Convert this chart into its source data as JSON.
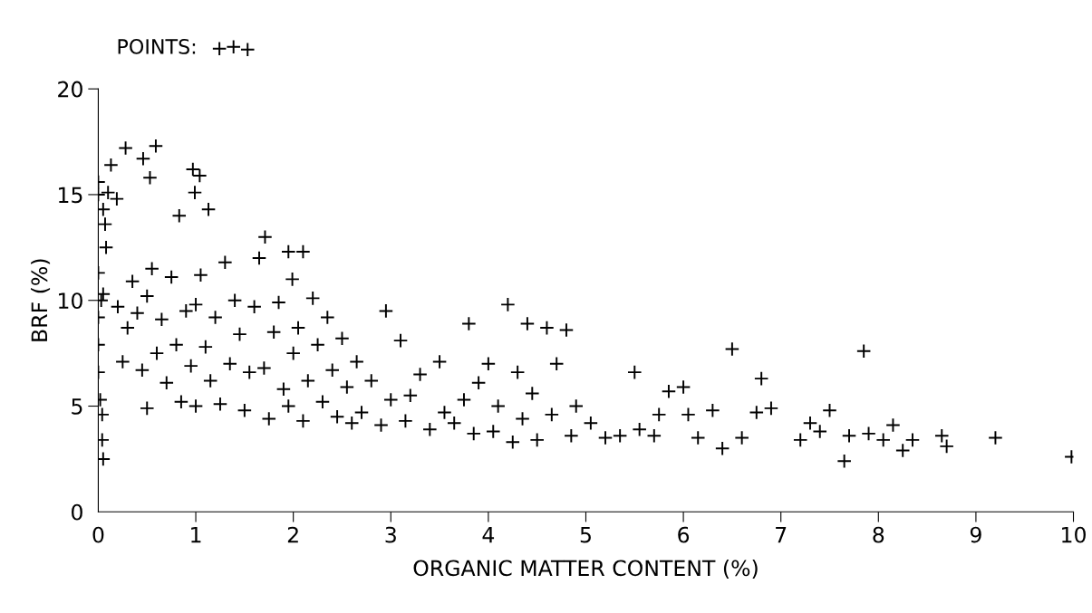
{
  "chart_data": {
    "type": "scatter",
    "xlabel": "ORGANIC MATTER CONTENT (%)",
    "ylabel": "BRF (%)",
    "xlim": [
      0,
      10
    ],
    "ylim": [
      0,
      20
    ],
    "xticks": [
      0,
      1,
      2,
      3,
      4,
      5,
      6,
      7,
      8,
      9,
      10
    ],
    "yticks": [
      0,
      5,
      10,
      15,
      20
    ],
    "grid": false,
    "legend": "top left",
    "marker": "cross",
    "series": [
      {
        "name": "POINTS:",
        "color": "#000000",
        "x": [
          0.0,
          0.0,
          0.05,
          0.13,
          0.1,
          0.07,
          0.08,
          0.0,
          0.03,
          0.0,
          0.0,
          0.0,
          0.02,
          0.04,
          0.04,
          0.05,
          0.05,
          0.28,
          0.46,
          0.59,
          0.53,
          0.19,
          0.97,
          1.04,
          0.99,
          1.13,
          0.83,
          1.71,
          1.95,
          2.1,
          1.99,
          0.2,
          0.25,
          0.3,
          0.35,
          0.4,
          0.45,
          0.5,
          0.5,
          0.55,
          0.6,
          0.65,
          0.7,
          0.75,
          0.8,
          0.85,
          0.9,
          0.95,
          1.0,
          1.0,
          1.05,
          1.1,
          1.15,
          1.2,
          1.25,
          1.3,
          1.35,
          1.4,
          1.45,
          1.5,
          1.55,
          1.6,
          1.65,
          1.7,
          1.75,
          1.8,
          1.85,
          1.9,
          1.95,
          2.0,
          2.05,
          2.1,
          2.15,
          2.2,
          2.25,
          2.3,
          2.35,
          2.4,
          2.45,
          2.5,
          2.55,
          2.6,
          2.65,
          2.7,
          2.8,
          2.9,
          2.95,
          3.0,
          3.1,
          3.15,
          3.2,
          3.3,
          3.4,
          3.5,
          3.55,
          3.65,
          3.75,
          3.8,
          3.85,
          3.9,
          4.0,
          4.05,
          4.1,
          4.2,
          4.25,
          4.3,
          4.35,
          4.4,
          4.45,
          4.5,
          4.6,
          4.65,
          4.7,
          4.8,
          4.85,
          4.9,
          5.05,
          5.2,
          5.35,
          5.5,
          5.55,
          5.7,
          5.75,
          5.85,
          6.0,
          6.05,
          6.15,
          6.3,
          6.4,
          6.5,
          6.6,
          6.75,
          6.8,
          6.9,
          7.2,
          7.3,
          7.4,
          7.5,
          7.65,
          7.7,
          7.85,
          7.9,
          8.05,
          8.15,
          8.25,
          8.35,
          8.65,
          8.7,
          9.2,
          9.98
        ],
        "values": [
          15.6,
          15.0,
          14.3,
          16.4,
          15.1,
          13.6,
          12.5,
          11.3,
          10.0,
          9.2,
          7.9,
          6.6,
          5.3,
          4.6,
          3.4,
          2.5,
          10.3,
          17.2,
          16.7,
          17.3,
          15.8,
          14.8,
          16.2,
          15.9,
          15.1,
          14.3,
          14.0,
          13.0,
          12.3,
          12.3,
          11.0,
          9.7,
          7.1,
          8.7,
          10.9,
          9.4,
          6.7,
          10.2,
          4.9,
          11.5,
          7.5,
          9.1,
          6.1,
          11.1,
          7.9,
          5.2,
          9.5,
          6.9,
          9.8,
          5.0,
          11.2,
          7.8,
          6.2,
          9.2,
          5.1,
          11.8,
          7.0,
          10.0,
          8.4,
          4.8,
          6.6,
          9.7,
          12.0,
          6.8,
          4.4,
          8.5,
          9.9,
          5.8,
          5.0,
          7.5,
          8.7,
          4.3,
          6.2,
          10.1,
          7.9,
          5.2,
          9.2,
          6.7,
          4.5,
          8.2,
          5.9,
          4.2,
          7.1,
          4.7,
          6.2,
          4.1,
          9.5,
          5.3,
          8.1,
          4.3,
          5.5,
          6.5,
          3.9,
          7.1,
          4.7,
          4.2,
          5.3,
          8.9,
          3.7,
          6.1,
          7.0,
          3.8,
          5.0,
          9.8,
          3.3,
          6.6,
          4.4,
          8.9,
          5.6,
          3.4,
          8.7,
          4.6,
          7.0,
          8.6,
          3.6,
          5.0,
          4.2,
          3.5,
          3.6,
          6.6,
          3.9,
          3.6,
          4.6,
          5.7,
          5.9,
          4.6,
          3.5,
          4.8,
          3.0,
          7.7,
          3.5,
          4.7,
          6.3,
          4.9,
          3.4,
          4.2,
          3.8,
          4.8,
          2.4,
          3.6,
          7.6,
          3.7,
          3.4,
          4.1,
          2.9,
          3.4,
          3.6,
          3.1,
          3.5,
          2.6
        ]
      }
    ]
  }
}
